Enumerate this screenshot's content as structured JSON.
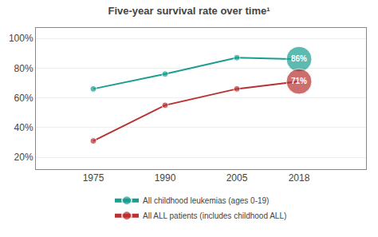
{
  "chart_data": {
    "type": "line",
    "title": "Five-year survival rate over time¹",
    "x": [
      1975,
      1990,
      2005,
      2018
    ],
    "series": [
      {
        "name": "All childhood leukemias (ages 0-19)",
        "color": "#1a9e8f",
        "values": [
          0.66,
          0.76,
          0.87,
          0.86
        ],
        "value_labels": [
          null,
          null,
          null,
          "86%"
        ]
      },
      {
        "name": "All ALL patients (includes childhood ALL)",
        "color": "#b83232",
        "values": [
          0.31,
          0.55,
          0.66,
          0.71
        ],
        "value_labels": [
          null,
          null,
          null,
          "71%"
        ]
      }
    ],
    "xlim": [
      1963,
      2032
    ],
    "xticks": [
      1975,
      1990,
      2005,
      2018
    ],
    "ylim": [
      0.12,
      1.07
    ],
    "yticks": [
      {
        "value": 0.2,
        "label": "20%"
      },
      {
        "value": 0.4,
        "label": "40%"
      },
      {
        "value": 0.6,
        "label": "60%"
      },
      {
        "value": 0.8,
        "label": "80%"
      },
      {
        "value": 1.0,
        "label": "100%"
      }
    ],
    "grid": "y",
    "legend": "bottom",
    "marker": "circle"
  }
}
